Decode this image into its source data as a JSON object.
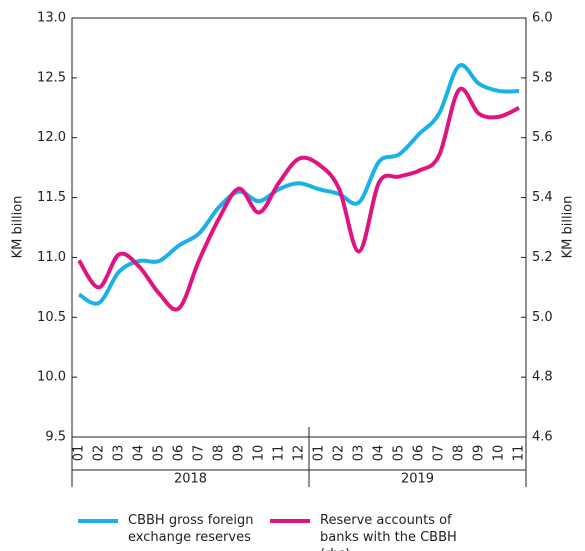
{
  "chart_data": {
    "type": "line",
    "categories": [
      "01",
      "02",
      "03",
      "04",
      "05",
      "06",
      "07",
      "08",
      "09",
      "10",
      "11",
      "12",
      "01",
      "02",
      "03",
      "04",
      "05",
      "06",
      "07",
      "08",
      "09",
      "10",
      "11"
    ],
    "groups": [
      "2018",
      "2019"
    ],
    "ylabel": "KM billion",
    "y2label": "KM billion",
    "ylim": [
      9.5,
      13.0
    ],
    "yticks": [
      {
        "value": 9.5,
        "label": "9.5"
      },
      {
        "value": 10,
        "label": "10.0"
      },
      {
        "value": 10.5,
        "label": "10.5"
      },
      {
        "value": 11,
        "label": "11.0"
      },
      {
        "value": 11.5,
        "label": "11.5"
      },
      {
        "value": 12,
        "label": "12.0"
      },
      {
        "value": 12.5,
        "label": "12.5"
      },
      {
        "value": 13,
        "label": "13.0"
      }
    ],
    "y2lim": [
      4.6,
      6.0
    ],
    "y2ticks": [
      4.6,
      4.8,
      {
        "value": 5,
        "label": "5.0"
      },
      5.2,
      5.4,
      5.6,
      5.8,
      {
        "value": 6,
        "label": "6.0"
      }
    ],
    "grid": false,
    "series": [
      {
        "name": "CBBH  gross foreign exchange reserves",
        "color": "#1ab0e8",
        "values": [
          10.69,
          10.62,
          10.88,
          10.97,
          10.97,
          11.1,
          11.2,
          11.42,
          11.55,
          11.47,
          11.57,
          11.62,
          11.57,
          11.53,
          11.46,
          11.8,
          11.86,
          12.03,
          12.2,
          12.6,
          12.45,
          12.39,
          12.39
        ]
      },
      {
        "name": "Reserve accounts of banks with the CBBH (rhs)",
        "color": "#e0147f",
        "axis": "y2",
        "values": [
          5.19,
          5.1,
          5.21,
          5.17,
          5.08,
          5.03,
          5.19,
          5.33,
          5.43,
          5.35,
          5.45,
          5.53,
          5.51,
          5.43,
          5.22,
          5.45,
          5.47,
          5.49,
          5.54,
          5.76,
          5.68,
          5.67,
          5.7
        ]
      }
    ]
  }
}
